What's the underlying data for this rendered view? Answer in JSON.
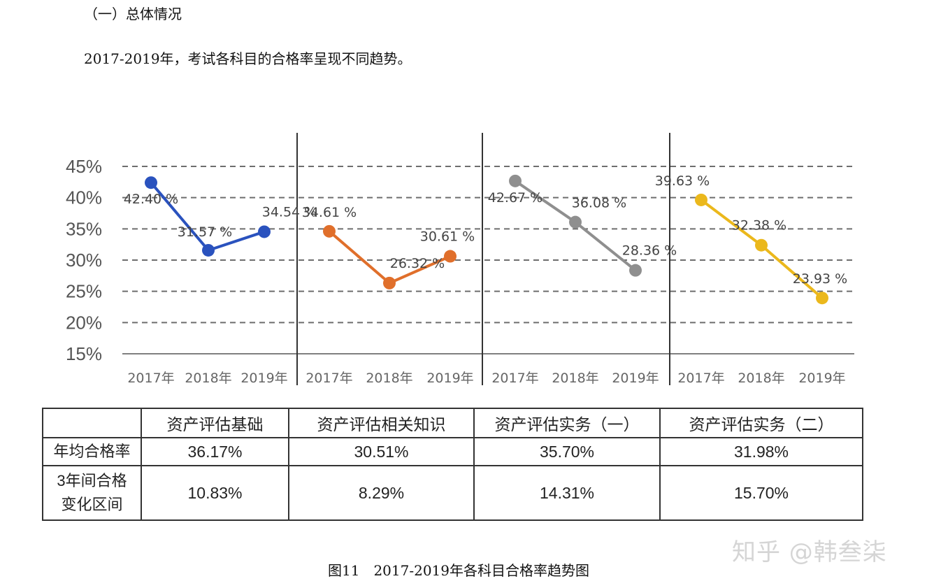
{
  "doc": {
    "section_heading": "（一）总体情况",
    "intro": "2017-2019年，考试各科目的合格率呈现不同趋势。",
    "caption": "图11　2017-2019年各科目合格率趋势图",
    "watermark": "知乎 @韩叁柒"
  },
  "chart_data": {
    "type": "line",
    "title": "",
    "xlabel": "",
    "ylabel": "",
    "ylim": [
      15,
      45
    ],
    "y_ticks": [
      15,
      20,
      25,
      30,
      35,
      40,
      45
    ],
    "y_tick_labels": [
      "15%",
      "20%",
      "25%",
      "30%",
      "35%",
      "40%",
      "45%"
    ],
    "grid": "dashed-horizontal",
    "categories": [
      "2017年",
      "2018年",
      "2019年"
    ],
    "series": [
      {
        "name": "资产评估基础",
        "color": "#2a52be",
        "values": [
          42.4,
          31.57,
          34.54
        ],
        "labels": [
          "42.40 %",
          "31.57 %",
          "34.54 %"
        ]
      },
      {
        "name": "资产评估相关知识",
        "color": "#e06f2b",
        "values": [
          34.61,
          26.32,
          30.61
        ],
        "labels": [
          "34.61 %",
          "26.32 %",
          "30.61 %"
        ]
      },
      {
        "name": "资产评估实务（一）",
        "color": "#8f8f8f",
        "values": [
          42.67,
          36.08,
          28.36
        ],
        "labels": [
          "42.67 %",
          "36.08 %",
          "28.36 %"
        ]
      },
      {
        "name": "资产评估实务（二）",
        "color": "#ebb81c",
        "values": [
          39.63,
          32.38,
          23.93
        ],
        "labels": [
          "39.63 %",
          "32.38 %",
          "23.93 %"
        ]
      }
    ]
  },
  "table": {
    "headers": [
      "",
      "资产评估基础",
      "资产评估相关知识",
      "资产评估实务（一）",
      "资产评估实务（二）"
    ],
    "row1_label": "年均合格率",
    "row1": [
      "36.17%",
      "30.51%",
      "35.70%",
      "31.98%"
    ],
    "row2_label_line1": "3年间合格",
    "row2_label_line2": "变化区间",
    "row2": [
      "10.83%",
      "8.29%",
      "14.31%",
      "15.70%"
    ]
  }
}
